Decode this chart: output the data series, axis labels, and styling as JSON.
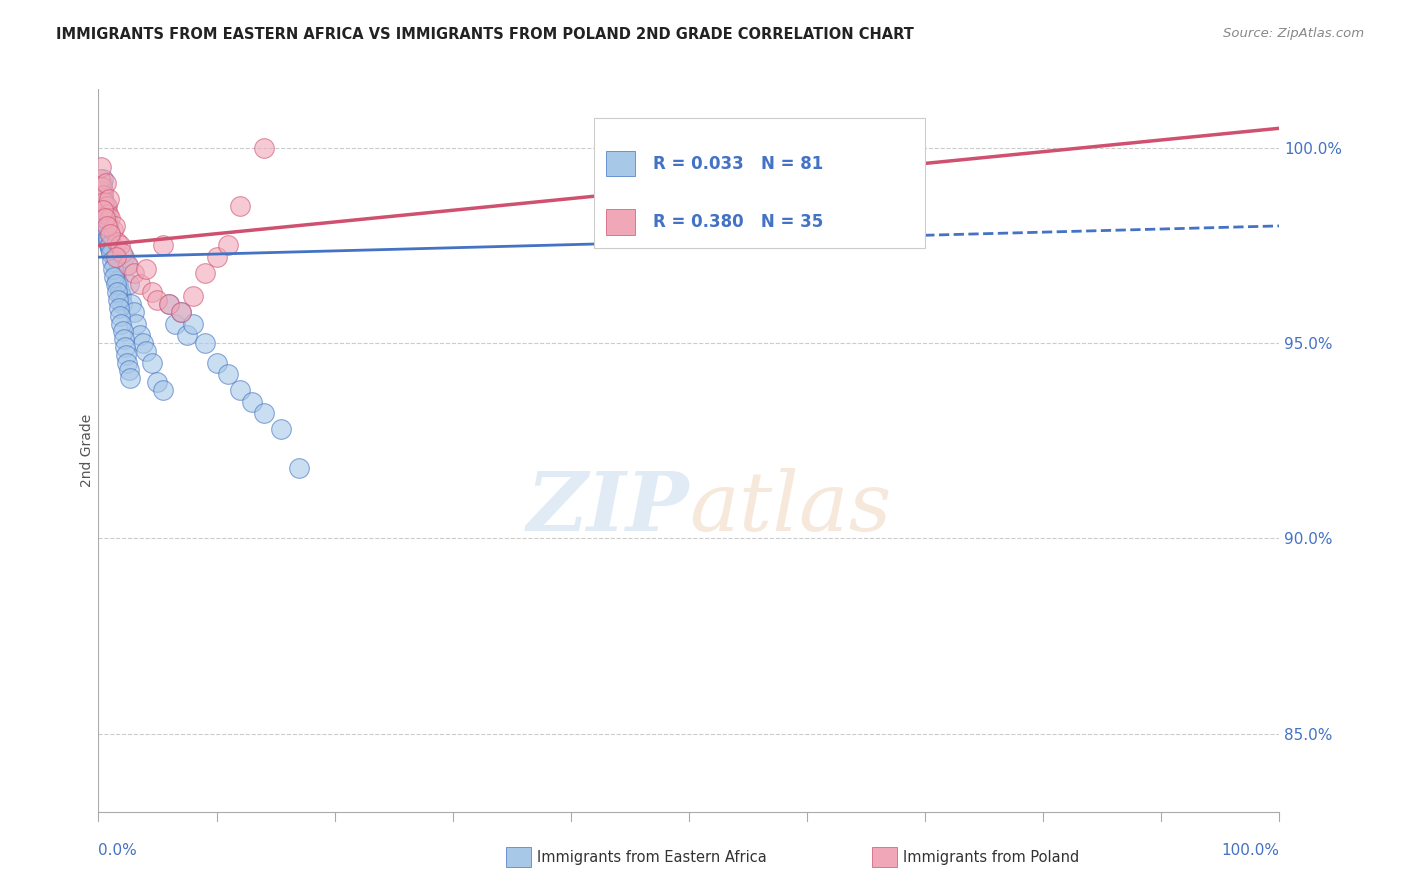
{
  "title": "IMMIGRANTS FROM EASTERN AFRICA VS IMMIGRANTS FROM POLAND 2ND GRADE CORRELATION CHART",
  "source": "Source: ZipAtlas.com",
  "ylabel": "2nd Grade",
  "xlim": [
    0.0,
    100.0
  ],
  "ylim": [
    83.0,
    101.5
  ],
  "yticks": [
    85.0,
    90.0,
    95.0,
    100.0
  ],
  "ytick_labels": [
    "85.0%",
    "90.0%",
    "95.0%",
    "100.0%"
  ],
  "legend_r1": "R = 0.033",
  "legend_n1": "N = 81",
  "legend_r2": "R = 0.380",
  "legend_n2": "N = 35",
  "color_blue": "#A8C8E8",
  "color_pink": "#F0A8B8",
  "color_blue_line": "#4472C4",
  "color_pink_line": "#D05070",
  "color_axis_text": "#4472C4",
  "background_color": "#FFFFFF",
  "blue_scatter_x": [
    0.1,
    0.2,
    0.2,
    0.3,
    0.3,
    0.3,
    0.4,
    0.4,
    0.5,
    0.5,
    0.6,
    0.6,
    0.7,
    0.7,
    0.8,
    0.8,
    0.9,
    0.9,
    1.0,
    1.0,
    1.1,
    1.2,
    1.3,
    1.4,
    1.5,
    1.6,
    1.7,
    1.8,
    1.9,
    2.0,
    2.2,
    2.4,
    2.6,
    2.8,
    3.0,
    3.2,
    3.5,
    3.8,
    4.0,
    4.5,
    5.0,
    5.5,
    6.0,
    6.5,
    7.0,
    7.5,
    8.0,
    9.0,
    10.0,
    11.0,
    12.0,
    13.0,
    14.0,
    15.5,
    17.0,
    0.15,
    0.25,
    0.35,
    0.45,
    0.55,
    0.65,
    0.75,
    0.85,
    0.95,
    1.05,
    1.15,
    1.25,
    1.35,
    1.45,
    1.55,
    1.65,
    1.75,
    1.85,
    1.95,
    2.05,
    2.15,
    2.25,
    2.35,
    2.45,
    2.55,
    2.65
  ],
  "blue_scatter_y": [
    98.5,
    99.0,
    98.8,
    98.7,
    99.1,
    98.6,
    98.9,
    99.2,
    98.4,
    98.3,
    98.5,
    97.9,
    98.2,
    97.8,
    98.0,
    97.6,
    97.9,
    97.5,
    97.8,
    97.4,
    97.6,
    97.3,
    97.2,
    97.0,
    96.8,
    96.6,
    96.5,
    96.3,
    96.2,
    96.0,
    97.2,
    97.0,
    96.5,
    96.0,
    95.8,
    95.5,
    95.2,
    95.0,
    94.8,
    94.5,
    94.0,
    93.8,
    96.0,
    95.5,
    95.8,
    95.2,
    95.5,
    95.0,
    94.5,
    94.2,
    93.8,
    93.5,
    93.2,
    92.8,
    91.8,
    98.6,
    98.9,
    98.7,
    98.5,
    98.3,
    98.1,
    97.9,
    97.7,
    97.5,
    97.3,
    97.1,
    96.9,
    96.7,
    96.5,
    96.3,
    96.1,
    95.9,
    95.7,
    95.5,
    95.3,
    95.1,
    94.9,
    94.7,
    94.5,
    94.3,
    94.1
  ],
  "pink_scatter_x": [
    0.1,
    0.2,
    0.3,
    0.4,
    0.5,
    0.6,
    0.7,
    0.8,
    0.9,
    1.0,
    1.2,
    1.4,
    1.6,
    1.8,
    2.0,
    2.5,
    3.0,
    3.5,
    4.0,
    4.5,
    5.0,
    5.5,
    6.0,
    7.0,
    8.0,
    9.0,
    10.0,
    11.0,
    12.0,
    14.0,
    0.35,
    0.55,
    0.75,
    0.95,
    1.5
  ],
  "pink_scatter_y": [
    99.2,
    99.5,
    99.0,
    98.8,
    98.6,
    99.1,
    98.5,
    98.3,
    98.7,
    98.2,
    97.9,
    98.0,
    97.6,
    97.5,
    97.3,
    97.0,
    96.8,
    96.5,
    96.9,
    96.3,
    96.1,
    97.5,
    96.0,
    95.8,
    96.2,
    96.8,
    97.2,
    97.5,
    98.5,
    100.0,
    98.4,
    98.2,
    98.0,
    97.8,
    97.2
  ],
  "blue_trend_x": [
    0.0,
    100.0
  ],
  "blue_trend_y_start": 97.2,
  "blue_trend_y_end": 98.0,
  "blue_solid_end_x": 45.0,
  "pink_trend_y_start": 97.5,
  "pink_trend_y_end": 100.5
}
